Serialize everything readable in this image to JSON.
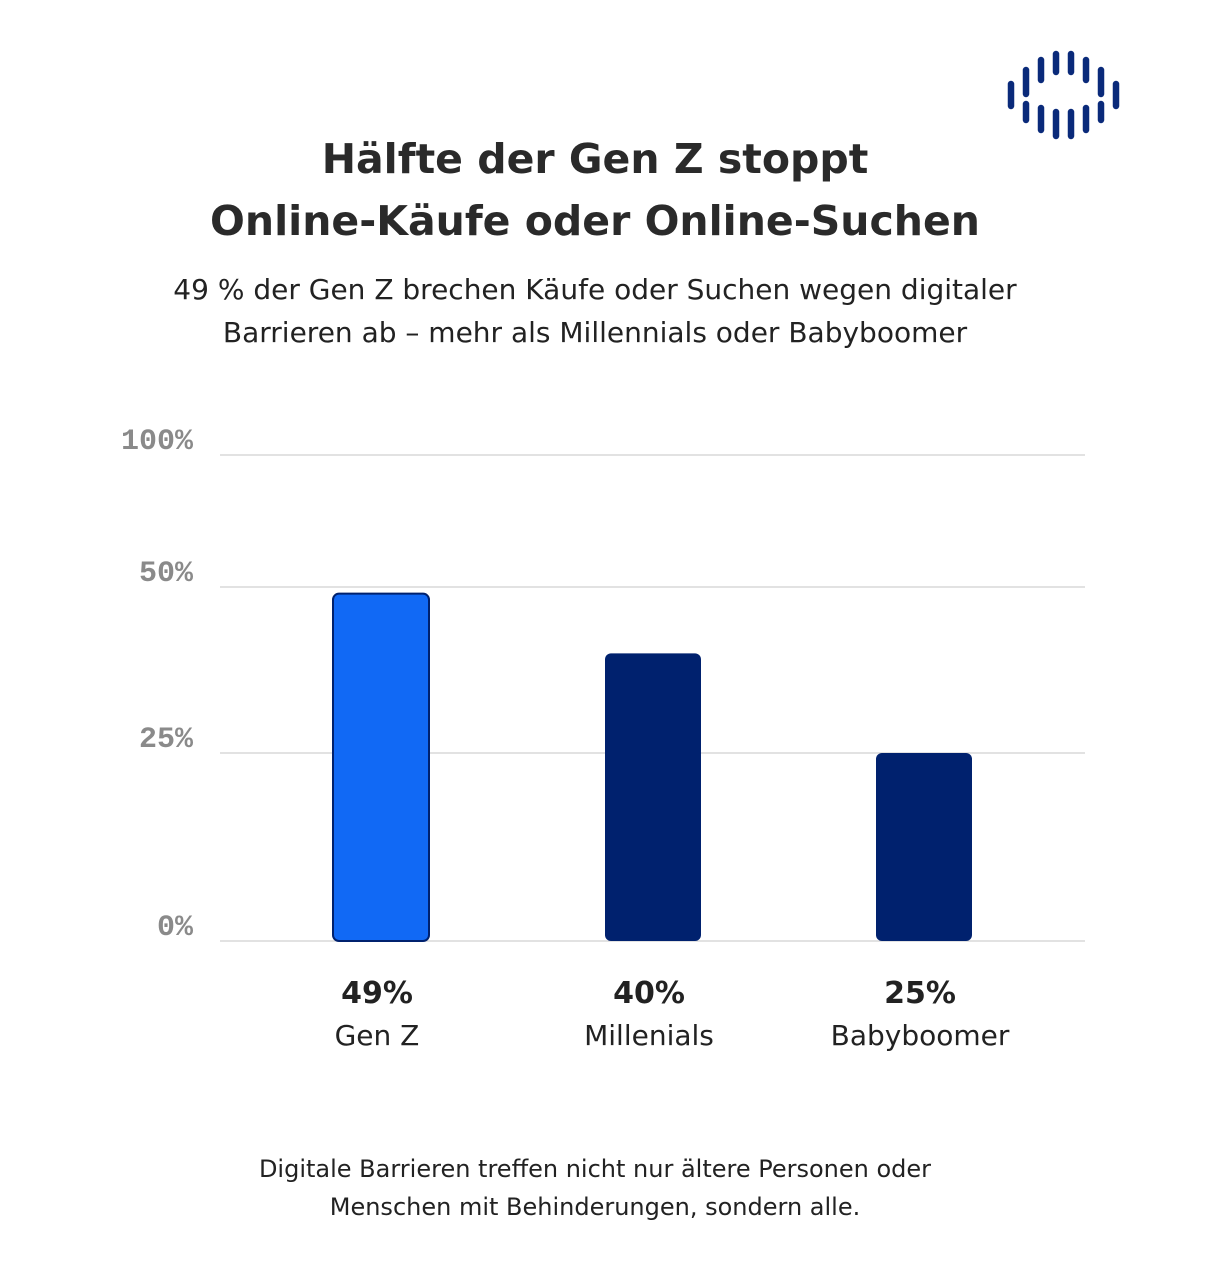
{
  "title_lines": [
    "Hälfte der Gen Z stoppt",
    "Online-Käufe oder Online-Suchen"
  ],
  "subtitle_lines": [
    "49 % der Gen Z brechen Käufe oder Suchen wegen digitaler",
    "Barrieren ab – mehr als Millennials oder Babyboomer"
  ],
  "footer_lines": [
    "Digitale Barrieren treffen nicht nur ältere Personen oder",
    "Menschen mit Behinderungen, sondern alle."
  ],
  "logo": {
    "icon": "sound-wave-logo-icon",
    "color": "#0a2a7a"
  },
  "colors": {
    "highlight": "#1169f5",
    "bar": "#00216e",
    "grid": "#d9d9d9",
    "tick": "#8a8a8a"
  },
  "chart_data": {
    "type": "bar",
    "title": "Hälfte der Gen Z stoppt Online-Käufe oder Online-Suchen",
    "categories": [
      "Gen Z",
      "Millenials",
      "Babyboomer"
    ],
    "values": [
      49,
      40,
      25
    ],
    "value_labels": [
      "49%",
      "40%",
      "25%"
    ],
    "highlight_index": 0,
    "yticks": [
      0,
      25,
      50,
      100
    ],
    "ytick_labels": [
      "0%",
      "25%",
      "50%",
      "100%"
    ],
    "ylim": [
      0,
      100
    ],
    "xlabel": "",
    "ylabel": "",
    "grid": true
  }
}
